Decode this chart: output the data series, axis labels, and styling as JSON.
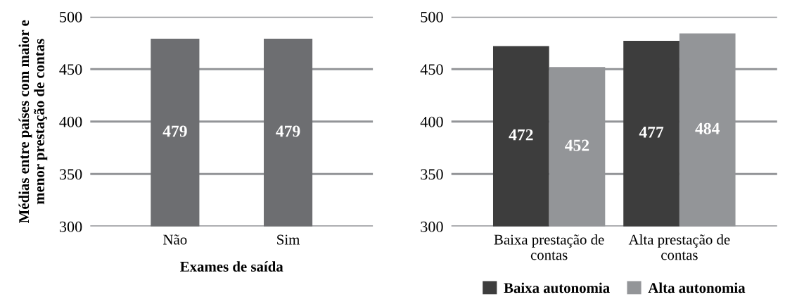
{
  "chart_data": [
    {
      "type": "bar",
      "ylabel": "Médias entre países com maior e menor prestação de contas",
      "xlabel": "Exames de saída",
      "categories": [
        "Não",
        "Sim"
      ],
      "series": [
        {
          "color": "#6d6e71",
          "values": [
            479,
            479
          ]
        }
      ],
      "data_labels": true,
      "ylim": [
        300,
        500
      ],
      "yticks": [
        300,
        350,
        400,
        450,
        500
      ],
      "grid": "y",
      "legend": false
    },
    {
      "type": "bar",
      "categories": [
        "Baixa prestação de contas",
        "Alta prestação de contas"
      ],
      "series": [
        {
          "name": "Baixa autonomia",
          "color": "#3d3d3d",
          "values": [
            472,
            477
          ]
        },
        {
          "name": "Alta autonomia",
          "color": "#939598",
          "values": [
            452,
            484
          ]
        }
      ],
      "data_labels": true,
      "ylim": [
        300,
        500
      ],
      "yticks": [
        300,
        350,
        400,
        450,
        500
      ],
      "grid": "y",
      "legend": "bottom"
    }
  ]
}
